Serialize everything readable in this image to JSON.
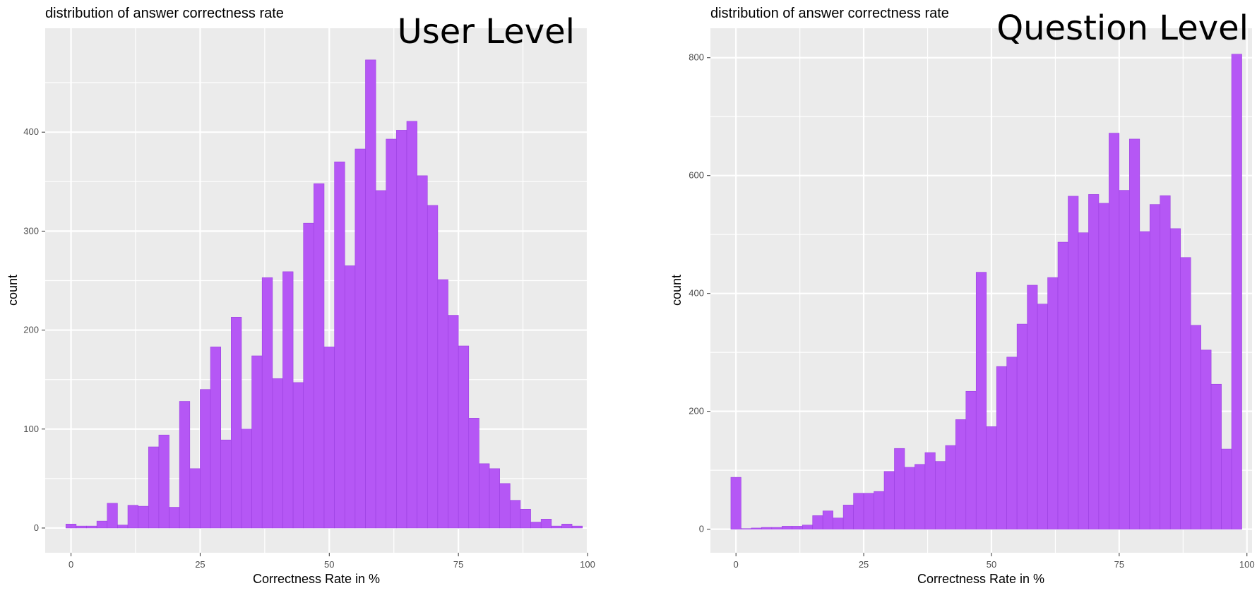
{
  "chart_data": [
    {
      "type": "bar",
      "title": "distribution of answer correctness rate",
      "overlay_label": "User Level",
      "xlabel": "Correctness Rate in %",
      "ylabel": "count",
      "xlim": [
        -5,
        100
      ],
      "ylim": [
        -25,
        505
      ],
      "x_ticks": [
        0,
        25,
        50,
        75,
        100
      ],
      "y_ticks": [
        0,
        100,
        200,
        300,
        400
      ],
      "x_tick_labels": [
        "0",
        "25",
        "50",
        "75",
        "100"
      ],
      "y_tick_labels": [
        "0",
        "100",
        "200",
        "300",
        "400"
      ],
      "grid": true,
      "panel_background": "#ebebeb",
      "bar_fill": "#b557f5",
      "bar_outline": "#9b40e0",
      "bin_width": 2,
      "bin_start": -1,
      "values": [
        4,
        2,
        2,
        7,
        25,
        3,
        23,
        22,
        82,
        94,
        21,
        128,
        60,
        140,
        183,
        89,
        213,
        100,
        174,
        253,
        151,
        259,
        147,
        308,
        348,
        183,
        370,
        265,
        383,
        473,
        341,
        393,
        402,
        411,
        356,
        326,
        251,
        215,
        184,
        111,
        65,
        60,
        45,
        28,
        19,
        6,
        9,
        2,
        4,
        2
      ]
    },
    {
      "type": "bar",
      "title": "distribution of answer correctness rate",
      "overlay_label": "Question Level",
      "xlabel": "Correctness Rate in %",
      "ylabel": "count",
      "xlim": [
        -5,
        101
      ],
      "ylim": [
        -40,
        850
      ],
      "x_ticks": [
        0,
        25,
        50,
        75,
        100
      ],
      "y_ticks": [
        0,
        200,
        400,
        600,
        800
      ],
      "x_tick_labels": [
        "0",
        "25",
        "50",
        "75",
        "100"
      ],
      "y_tick_labels": [
        "0",
        "200",
        "400",
        "600",
        "800"
      ],
      "grid": true,
      "panel_background": "#ebebeb",
      "bar_fill": "#b557f5",
      "bar_outline": "#9b40e0",
      "bin_width": 2,
      "bin_start": -1,
      "values": [
        88,
        1,
        2,
        3,
        3,
        5,
        5,
        7,
        23,
        31,
        19,
        41,
        61,
        61,
        64,
        98,
        137,
        105,
        110,
        130,
        115,
        142,
        186,
        234,
        436,
        174,
        276,
        292,
        348,
        414,
        382,
        427,
        487,
        565,
        503,
        568,
        553,
        672,
        575,
        662,
        505,
        551,
        566,
        510,
        461,
        346,
        304,
        246,
        136,
        806
      ]
    }
  ]
}
